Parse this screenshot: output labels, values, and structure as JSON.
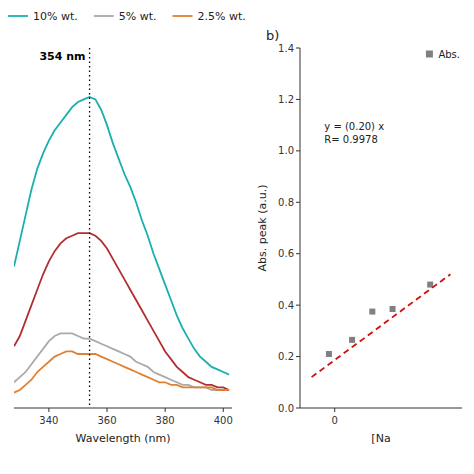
{
  "chart_data": [
    {
      "type": "line",
      "xlabel": "Wavelength (nm)",
      "xlim": [
        328,
        403
      ],
      "xticks": [
        340,
        360,
        380,
        400
      ],
      "ylim": [
        0,
        1.4
      ],
      "tick_labels": "x",
      "grid": false,
      "legend": "top",
      "reference_lines": [
        {
          "x": 354,
          "label": "354 nm",
          "line_style": "dotted"
        }
      ],
      "series": [
        {
          "name": "10% wt.",
          "color": "#1aafaf",
          "line_style": "solid",
          "x": [
            328,
            330,
            332,
            334,
            336,
            338,
            340,
            342,
            344,
            346,
            348,
            350,
            352,
            354,
            356,
            358,
            360,
            362,
            364,
            366,
            368,
            370,
            372,
            374,
            376,
            378,
            380,
            382,
            384,
            386,
            388,
            390,
            392,
            394,
            396,
            398,
            400,
            402
          ],
          "values": [
            0.55,
            0.65,
            0.75,
            0.85,
            0.93,
            0.99,
            1.04,
            1.08,
            1.11,
            1.14,
            1.17,
            1.19,
            1.2,
            1.21,
            1.2,
            1.16,
            1.1,
            1.03,
            0.97,
            0.91,
            0.86,
            0.8,
            0.73,
            0.67,
            0.6,
            0.54,
            0.48,
            0.42,
            0.36,
            0.31,
            0.27,
            0.23,
            0.2,
            0.18,
            0.16,
            0.15,
            0.14,
            0.13
          ]
        },
        {
          "color": "#b03030",
          "line_style": "solid",
          "x": [
            328,
            330,
            332,
            334,
            336,
            338,
            340,
            342,
            344,
            346,
            348,
            350,
            352,
            354,
            356,
            358,
            360,
            362,
            364,
            366,
            368,
            370,
            372,
            374,
            376,
            378,
            380,
            382,
            384,
            386,
            388,
            390,
            392,
            394,
            396,
            398,
            400,
            402
          ],
          "values": [
            0.24,
            0.28,
            0.34,
            0.4,
            0.46,
            0.52,
            0.57,
            0.61,
            0.64,
            0.66,
            0.67,
            0.68,
            0.68,
            0.68,
            0.67,
            0.65,
            0.62,
            0.58,
            0.54,
            0.5,
            0.46,
            0.42,
            0.38,
            0.34,
            0.3,
            0.26,
            0.22,
            0.19,
            0.16,
            0.14,
            0.12,
            0.11,
            0.1,
            0.09,
            0.09,
            0.08,
            0.08,
            0.07
          ]
        },
        {
          "name": "5% wt.",
          "color": "#aaaaaa",
          "line_style": "solid",
          "x": [
            328,
            330,
            332,
            334,
            336,
            338,
            340,
            342,
            344,
            346,
            348,
            350,
            352,
            354,
            356,
            358,
            360,
            362,
            364,
            366,
            368,
            370,
            372,
            374,
            376,
            378,
            380,
            382,
            384,
            386,
            388,
            390,
            392,
            394,
            396,
            398,
            400,
            402
          ],
          "values": [
            0.1,
            0.12,
            0.14,
            0.17,
            0.2,
            0.23,
            0.26,
            0.28,
            0.29,
            0.29,
            0.29,
            0.28,
            0.27,
            0.27,
            0.26,
            0.25,
            0.24,
            0.23,
            0.22,
            0.21,
            0.2,
            0.18,
            0.17,
            0.16,
            0.14,
            0.13,
            0.12,
            0.11,
            0.1,
            0.09,
            0.09,
            0.08,
            0.08,
            0.08,
            0.07,
            0.07,
            0.07,
            0.07
          ]
        },
        {
          "name": "2.5% wt.",
          "color": "#e08030",
          "line_style": "solid",
          "x": [
            328,
            330,
            332,
            334,
            336,
            338,
            340,
            342,
            344,
            346,
            348,
            350,
            352,
            354,
            356,
            358,
            360,
            362,
            364,
            366,
            368,
            370,
            372,
            374,
            376,
            378,
            380,
            382,
            384,
            386,
            388,
            390,
            392,
            394,
            396,
            398,
            400,
            402
          ],
          "values": [
            0.06,
            0.07,
            0.09,
            0.11,
            0.14,
            0.16,
            0.18,
            0.2,
            0.21,
            0.22,
            0.22,
            0.21,
            0.21,
            0.21,
            0.21,
            0.2,
            0.19,
            0.18,
            0.17,
            0.16,
            0.15,
            0.14,
            0.13,
            0.12,
            0.11,
            0.1,
            0.1,
            0.09,
            0.09,
            0.08,
            0.08,
            0.08,
            0.08,
            0.08,
            0.08,
            0.07,
            0.07,
            0.07
          ]
        }
      ]
    },
    {
      "type": "scatter",
      "title": "b)",
      "xlabel": "[Na",
      "ylabel": "Abs. peak (a.u.)",
      "xlim": [
        -0.6,
        2.2
      ],
      "ylim": [
        0.0,
        1.4
      ],
      "xticks": [
        0
      ],
      "yticks": [
        {
          "value": 0.0,
          "label": "0.0"
        },
        0.2,
        0.4,
        0.6,
        0.8,
        {
          "value": 1.0,
          "label": "1.0"
        },
        1.2,
        1.4
      ],
      "grid": false,
      "legend": "upper right",
      "annotations": [
        {
          "text": "y = (0.20) x\nR= 0.9978"
        }
      ],
      "series": [
        {
          "name": "Abs.",
          "type": "scatter",
          "color": "#808080",
          "marker": "square",
          "x": [
            -0.1,
            0.3,
            0.65,
            1.0,
            1.65
          ],
          "values": [
            0.21,
            0.265,
            0.375,
            0.385,
            0.48
          ]
        },
        {
          "type": "line",
          "color": "#cc1111",
          "line_style": "dashed",
          "x": [
            -0.4,
            2.0
          ],
          "values": [
            0.12,
            0.52
          ]
        }
      ]
    }
  ]
}
